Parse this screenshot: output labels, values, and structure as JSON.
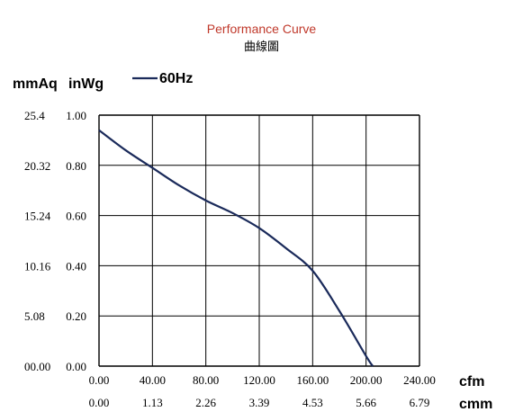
{
  "chart_data": {
    "type": "line",
    "title": "Performance Curve",
    "subtitle": "曲線圖",
    "title_color": "#c0392b",
    "line_color": "#1a2a5a",
    "y_unit_primary": "mmAq",
    "y_unit_secondary": "inWg",
    "x_unit_primary": "cfm",
    "x_unit_secondary": "cmm",
    "grid": true,
    "legend_position": "top-left",
    "xlim": [
      0,
      240
    ],
    "ylim": [
      0,
      1.0
    ],
    "x_ticks_cfm": [
      "0.00",
      "40.00",
      "80.00",
      "120.00",
      "160.00",
      "200.00",
      "240.00"
    ],
    "x_ticks_cmm": [
      "0.00",
      "1.13",
      "2.26",
      "3.39",
      "4.53",
      "5.66",
      "6.79"
    ],
    "y_ticks_inwg": [
      "0.00",
      "0.20",
      "0.40",
      "0.60",
      "0.80",
      "1.00"
    ],
    "y_ticks_mmaq": [
      "00.00",
      "5.08",
      "10.16",
      "15.24",
      "20.32",
      "25.4"
    ],
    "series": [
      {
        "name": "60Hz",
        "x": [
          0,
          20,
          40,
          60,
          80,
          100,
          120,
          140,
          160,
          180,
          200,
          205
        ],
        "y": [
          0.94,
          0.86,
          0.79,
          0.72,
          0.66,
          0.61,
          0.55,
          0.47,
          0.38,
          0.22,
          0.04,
          0.0
        ]
      }
    ]
  }
}
